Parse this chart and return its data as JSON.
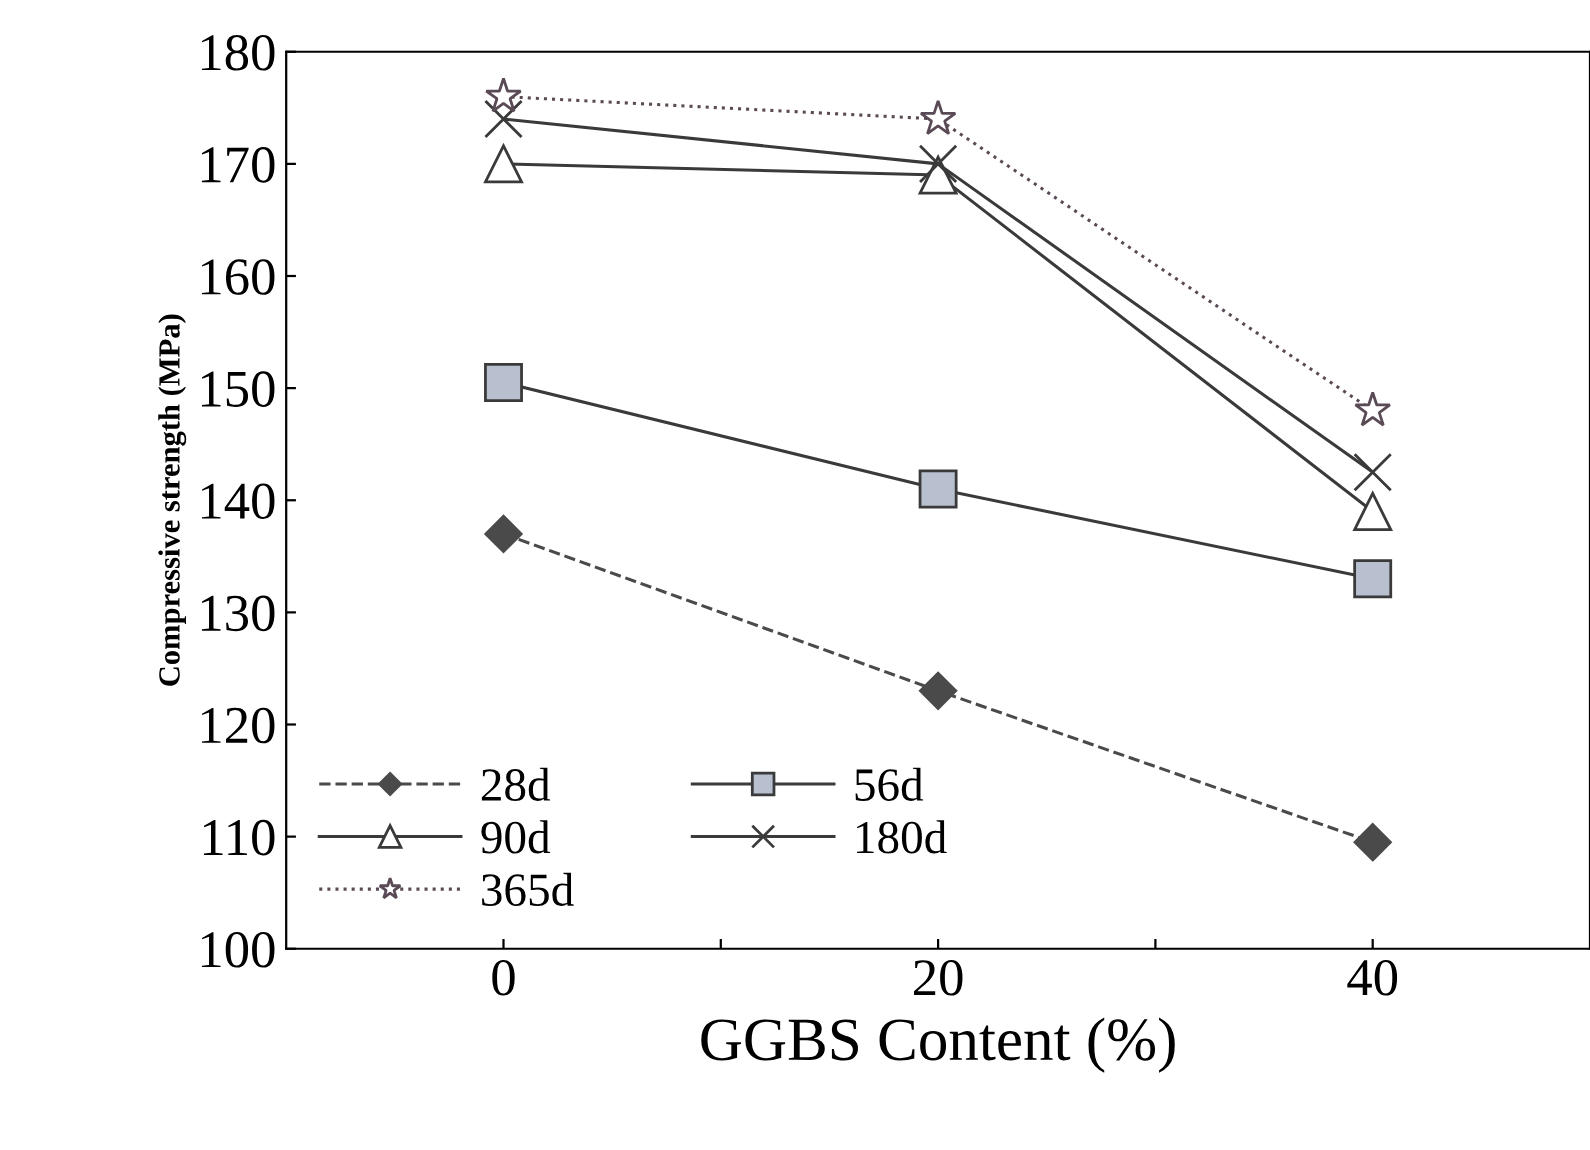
{
  "chart_data": {
    "type": "line",
    "xlabel": "GGBS Content (%)",
    "ylabel": "Compressive strength (MPa)",
    "x": [
      0,
      20,
      40
    ],
    "xlim": [
      -10,
      50
    ],
    "xticks": [
      0,
      {
        "value": 10,
        "label": null
      },
      20,
      {
        "value": 30,
        "label": null
      },
      40
    ],
    "ylim": [
      100,
      180
    ],
    "yticks": [
      100,
      110,
      120,
      130,
      140,
      150,
      160,
      170,
      180
    ],
    "grid": false,
    "legend": "bottom left",
    "series": [
      {
        "name": "28d",
        "color": "#4a4a4a",
        "marker": "diamond",
        "line_style": "dashed",
        "values": [
          137,
          123,
          109.5
        ]
      },
      {
        "name": "56d",
        "color": "#3a3a3a",
        "marker": "square",
        "line_style": "solid",
        "values": [
          150.5,
          141,
          133
        ]
      },
      {
        "name": "90d",
        "color": "#3a3a3a",
        "marker": "triangle",
        "line_style": "solid",
        "values": [
          170,
          169,
          139
        ]
      },
      {
        "name": "180d",
        "color": "#3a3a3a",
        "marker": "cross",
        "line_style": "solid",
        "values": [
          174,
          170,
          142.5
        ]
      },
      {
        "name": "365d",
        "color": "#5a4a55",
        "marker": "star",
        "line_style": "dotted",
        "values": [
          176,
          174,
          148
        ]
      }
    ]
  }
}
